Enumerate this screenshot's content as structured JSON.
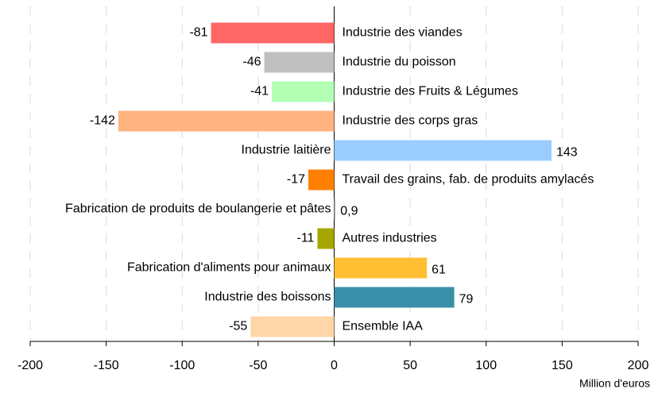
{
  "chart_data": {
    "type": "bar",
    "orientation": "horizontal",
    "x_label": "Million d'euros",
    "categories": [
      "Industrie des viandes",
      "Industrie du poisson",
      "Industrie des Fruits & Légumes",
      "Industrie des corps gras",
      "Industrie laitière",
      "Travail des grains, fab. de produits amylacés",
      "Fabrication de produits de boulangerie et pâtes",
      "Autres industries",
      "Fabrication d'aliments pour animaux",
      "Industrie des boissons",
      "Ensemble IAA"
    ],
    "values": [
      -81,
      -46,
      -41,
      -142,
      143,
      -17,
      0.9,
      -11,
      61,
      79,
      -55
    ],
    "value_labels": [
      "-81",
      "-46",
      "-41",
      "-142",
      "143",
      "-17",
      "0,9",
      "-11",
      "61",
      "79",
      "-55"
    ],
    "colors": [
      "#ff6666",
      "#c0c0c0",
      "#b3ffb3",
      "#ffb380",
      "#99ccff",
      "#ff8000",
      "#c0c0c0",
      "#a6a600",
      "#ffbf33",
      "#3a8fa8",
      "#ffd6a8"
    ],
    "xlim": [
      -200,
      200
    ],
    "xticks": [
      -200,
      -150,
      -100,
      -50,
      0,
      50,
      100,
      150,
      200
    ],
    "grid": true
  }
}
